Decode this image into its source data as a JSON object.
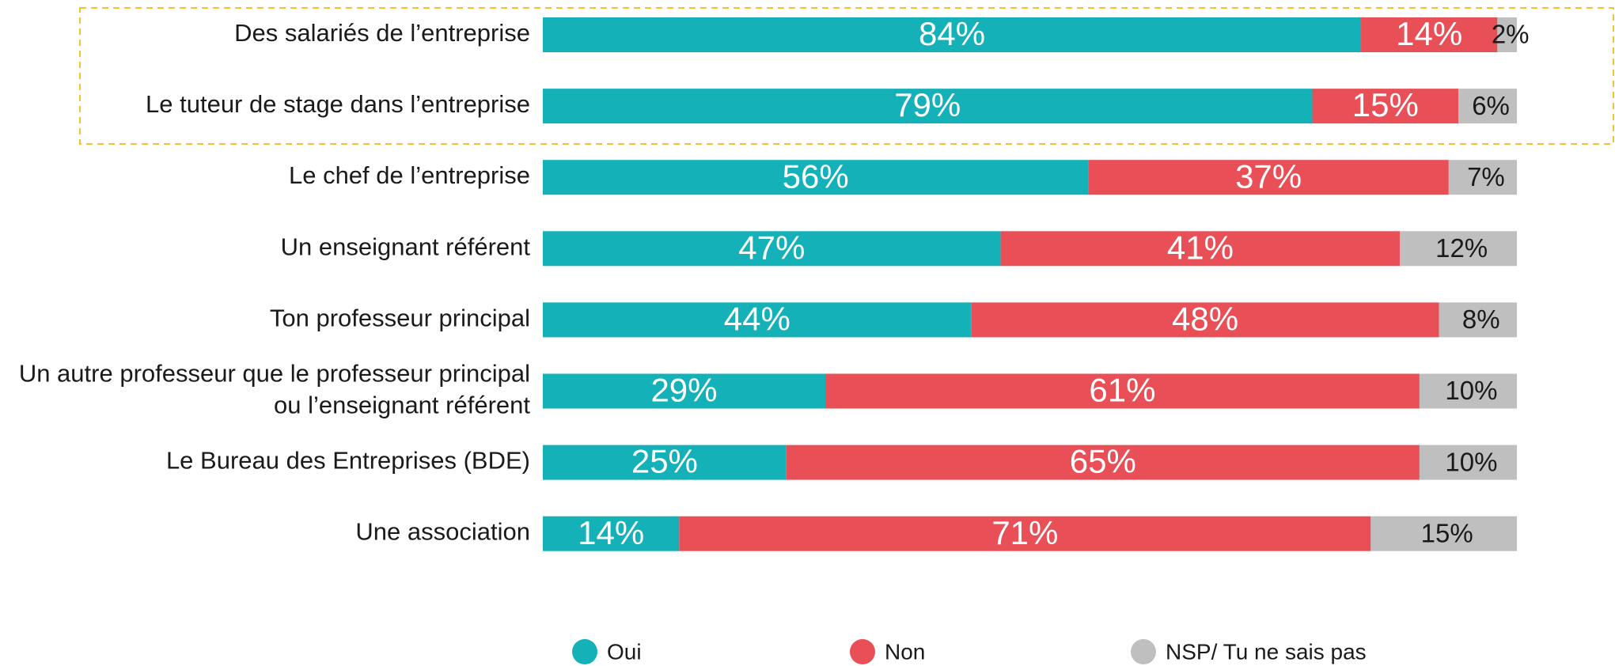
{
  "chart_data": {
    "type": "stacked_bar_horizontal",
    "categories": [
      "Des salariés de l’entreprise",
      "Le tuteur de stage dans l’entreprise",
      "Le chef de l’entreprise",
      "Un enseignant référent",
      "Ton professeur principal",
      "Un autre professeur que le professeur principal\nou l’enseignant référent",
      "Le Bureau des Entreprises (BDE)",
      "Une association"
    ],
    "series": [
      {
        "name": "Oui",
        "color": "#14b1b8",
        "values": [
          84,
          79,
          56,
          47,
          44,
          29,
          25,
          14
        ],
        "value_labels": [
          "84%",
          "79%",
          "56%",
          "47%",
          "44%",
          "29%",
          "25%",
          "14%"
        ]
      },
      {
        "name": "Non",
        "color": "#e84f56",
        "values": [
          14,
          15,
          37,
          41,
          48,
          61,
          65,
          71
        ],
        "value_labels": [
          "14%",
          "15%",
          "37%",
          "41%",
          "48%",
          "61%",
          "65%",
          "71%"
        ]
      },
      {
        "name": "NSP/ Tu ne sais pas",
        "color": "#bfbfbf",
        "values": [
          2,
          6,
          7,
          12,
          8,
          10,
          10,
          15
        ],
        "value_labels": [
          "2%",
          "6%",
          "7%",
          "12%",
          "8%",
          "10%",
          "10%",
          "15%"
        ]
      }
    ],
    "xlim": [
      0,
      100
    ],
    "legend": "bottom"
  }
}
